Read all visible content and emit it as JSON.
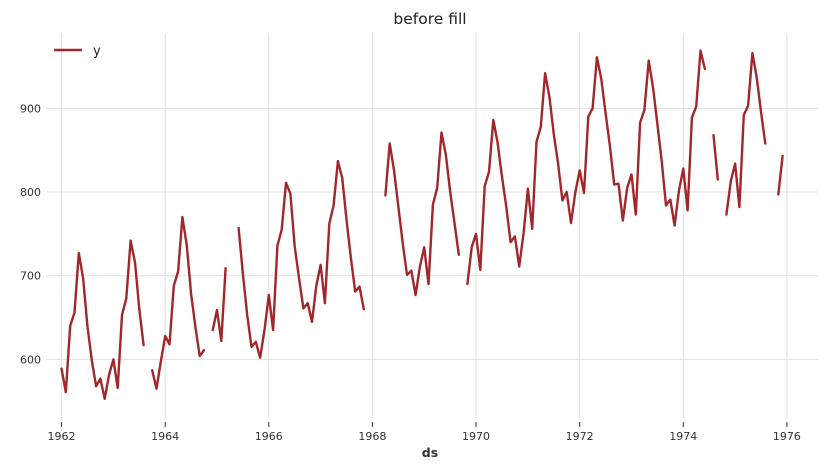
{
  "chart_data": {
    "type": "line",
    "title": "before fill",
    "xlabel": "ds",
    "ylabel": "",
    "xlim": [
      1961.7,
      1976.6
    ],
    "ylim": [
      530,
      990
    ],
    "xticks": [
      1962,
      1964,
      1966,
      1968,
      1970,
      1972,
      1974,
      1976
    ],
    "xtick_labels": [
      "1962",
      "1964",
      "1966",
      "1968",
      "1970",
      "1972",
      "1974",
      "1976"
    ],
    "yticks": [
      600,
      700,
      800,
      900
    ],
    "ytick_labels": [
      "600",
      "700",
      "800",
      "900"
    ],
    "grid": true,
    "legend": "upper-left",
    "series": [
      {
        "name": "y",
        "color": "#a2272b",
        "segments": [
          [
            [
              1962.0,
              589
            ],
            [
              1962.083,
              561
            ],
            [
              1962.167,
              640
            ],
            [
              1962.25,
              656
            ],
            [
              1962.333,
              727
            ],
            [
              1962.417,
              697
            ],
            [
              1962.5,
              640
            ],
            [
              1962.583,
              599
            ],
            [
              1962.667,
              568
            ],
            [
              1962.75,
              577
            ],
            [
              1962.833,
              553
            ],
            [
              1962.917,
              582
            ],
            [
              1963.0,
              600
            ],
            [
              1963.083,
              566
            ],
            [
              1963.167,
              653
            ],
            [
              1963.25,
              673
            ],
            [
              1963.333,
              742
            ],
            [
              1963.417,
              716
            ],
            [
              1963.5,
              660
            ],
            [
              1963.583,
              617
            ]
          ],
          [
            [
              1963.75,
              587
            ],
            [
              1963.833,
              565
            ],
            [
              1963.917,
              598
            ],
            [
              1964.0,
              628
            ],
            [
              1964.083,
              618
            ],
            [
              1964.167,
              688
            ],
            [
              1964.25,
              705
            ],
            [
              1964.333,
              770
            ],
            [
              1964.417,
              736
            ],
            [
              1964.5,
              678
            ],
            [
              1964.583,
              639
            ],
            [
              1964.667,
              604
            ],
            [
              1964.75,
              611
            ]
          ],
          [
            [
              1964.917,
              635
            ],
            [
              1965.0,
              659
            ],
            [
              1965.083,
              622
            ],
            [
              1965.167,
              709
            ]
          ],
          [
            [
              1965.417,
              757
            ],
            [
              1965.5,
              702
            ],
            [
              1965.583,
              653
            ],
            [
              1965.667,
              615
            ],
            [
              1965.75,
              621
            ],
            [
              1965.833,
              602
            ],
            [
              1965.917,
              635
            ],
            [
              1966.0,
              677
            ],
            [
              1966.083,
              635
            ],
            [
              1966.167,
              736
            ],
            [
              1966.25,
              755
            ],
            [
              1966.333,
              811
            ],
            [
              1966.417,
              798
            ],
            [
              1966.5,
              735
            ],
            [
              1966.583,
              697
            ],
            [
              1966.667,
              661
            ],
            [
              1966.75,
              667
            ],
            [
              1966.833,
              645
            ],
            [
              1966.917,
              688
            ],
            [
              1967.0,
              713
            ],
            [
              1967.083,
              667
            ],
            [
              1967.167,
              762
            ],
            [
              1967.25,
              784
            ],
            [
              1967.333,
              837
            ],
            [
              1967.417,
              817
            ],
            [
              1967.5,
              767
            ],
            [
              1967.583,
              722
            ],
            [
              1967.667,
              681
            ],
            [
              1967.75,
              687
            ],
            [
              1967.833,
              660
            ]
          ],
          [
            [
              1968.25,
              796
            ],
            [
              1968.333,
              858
            ],
            [
              1968.417,
              826
            ],
            [
              1968.5,
              783
            ],
            [
              1968.583,
              740
            ],
            [
              1968.667,
              701
            ],
            [
              1968.75,
              706
            ],
            [
              1968.833,
              677
            ],
            [
              1968.917,
              711
            ],
            [
              1969.0,
              734
            ],
            [
              1969.083,
              690
            ],
            [
              1969.167,
              785
            ],
            [
              1969.25,
              805
            ],
            [
              1969.333,
              871
            ],
            [
              1969.417,
              845
            ],
            [
              1969.5,
              801
            ],
            [
              1969.583,
              764
            ],
            [
              1969.667,
              725
            ]
          ],
          [
            [
              1969.833,
              690
            ],
            [
              1969.917,
              734
            ],
            [
              1970.0,
              750
            ],
            [
              1970.083,
              707
            ],
            [
              1970.167,
              807
            ],
            [
              1970.25,
              824
            ],
            [
              1970.333,
              886
            ],
            [
              1970.417,
              859
            ],
            [
              1970.5,
              819
            ],
            [
              1970.583,
              783
            ],
            [
              1970.667,
              740
            ],
            [
              1970.75,
              747
            ],
            [
              1970.833,
              711
            ],
            [
              1970.917,
              751
            ],
            [
              1971.0,
              804
            ],
            [
              1971.083,
              756
            ],
            [
              1971.167,
              860
            ],
            [
              1971.25,
              878
            ],
            [
              1971.333,
              942
            ],
            [
              1971.417,
              913
            ],
            [
              1971.5,
              869
            ],
            [
              1971.583,
              834
            ],
            [
              1971.667,
              790
            ],
            [
              1971.75,
              800
            ],
            [
              1971.833,
              763
            ],
            [
              1971.917,
              800
            ],
            [
              1972.0,
              826
            ],
            [
              1972.083,
              799
            ],
            [
              1972.167,
              890
            ],
            [
              1972.25,
              900
            ],
            [
              1972.333,
              961
            ],
            [
              1972.417,
              935
            ],
            [
              1972.5,
              894
            ],
            [
              1972.583,
              855
            ],
            [
              1972.667,
              809
            ],
            [
              1972.75,
              810
            ],
            [
              1972.833,
              766
            ],
            [
              1972.917,
              805
            ],
            [
              1973.0,
              821
            ],
            [
              1973.083,
              773
            ],
            [
              1973.167,
              883
            ],
            [
              1973.25,
              898
            ],
            [
              1973.333,
              957
            ],
            [
              1973.417,
              924
            ],
            [
              1973.5,
              881
            ],
            [
              1973.583,
              837
            ],
            [
              1973.667,
              784
            ],
            [
              1973.75,
              791
            ],
            [
              1973.833,
              760
            ],
            [
              1973.917,
              802
            ],
            [
              1974.0,
              828
            ],
            [
              1974.083,
              778
            ],
            [
              1974.167,
              889
            ],
            [
              1974.25,
              902
            ],
            [
              1974.333,
              969
            ],
            [
              1974.417,
              947
            ]
          ],
          [
            [
              1974.583,
              868
            ],
            [
              1974.667,
              815
            ]
          ],
          [
            [
              1974.833,
              773
            ],
            [
              1974.917,
              813
            ],
            [
              1975.0,
              834
            ],
            [
              1975.083,
              782
            ],
            [
              1975.167,
              892
            ],
            [
              1975.25,
              903
            ],
            [
              1975.333,
              966
            ],
            [
              1975.417,
              937
            ],
            [
              1975.5,
              896
            ],
            [
              1975.583,
              858
            ]
          ],
          [
            [
              1975.833,
              797
            ],
            [
              1975.917,
              843
            ]
          ]
        ]
      }
    ]
  }
}
